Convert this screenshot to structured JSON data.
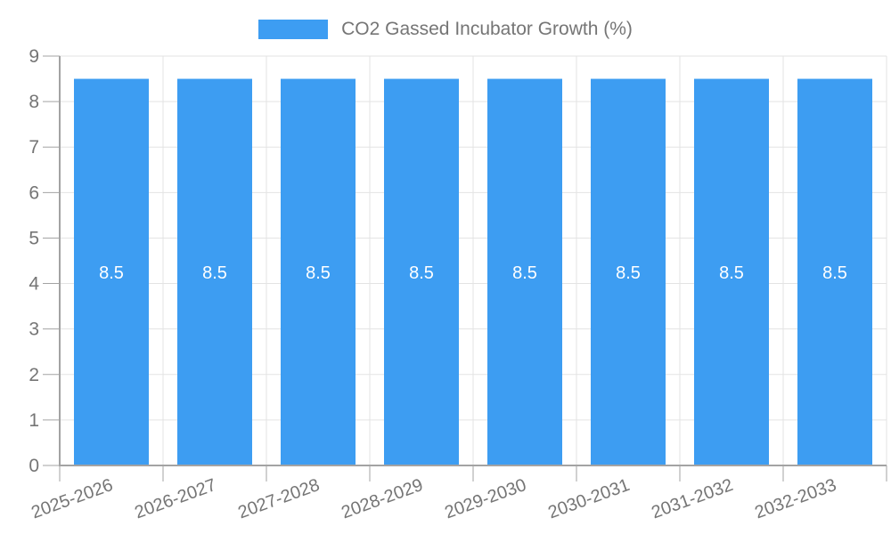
{
  "legend": {
    "label": "CO2 Gassed Incubator Growth (%)"
  },
  "chart_data": {
    "type": "bar",
    "title": "CO2 Gassed Incubator Growth (%)",
    "categories": [
      "2025-2026",
      "2026-2027",
      "2027-2028",
      "2028-2029",
      "2029-2030",
      "2030-2031",
      "2031-2032",
      "2032-2033"
    ],
    "values": [
      8.5,
      8.5,
      8.5,
      8.5,
      8.5,
      8.5,
      8.5,
      8.5
    ],
    "bar_value_labels": [
      "8.5",
      "8.5",
      "8.5",
      "8.5",
      "8.5",
      "8.5",
      "8.5",
      "8.5"
    ],
    "xlabel": "",
    "ylabel": "",
    "ylim": [
      0,
      9
    ],
    "ytick_step": 1,
    "ytick_labels": [
      "0",
      "1",
      "2",
      "3",
      "4",
      "5",
      "6",
      "7",
      "8",
      "9"
    ],
    "grid": true,
    "legend_position": "top",
    "x_label_rotation_deg": -20,
    "colors": {
      "bar": "#3D9DF2",
      "grid": "#E3E3E3",
      "axis": "#A3A3A3",
      "tick_text": "#757575",
      "bar_label": "#FFFFFF",
      "background": "#FFFFFF"
    }
  }
}
